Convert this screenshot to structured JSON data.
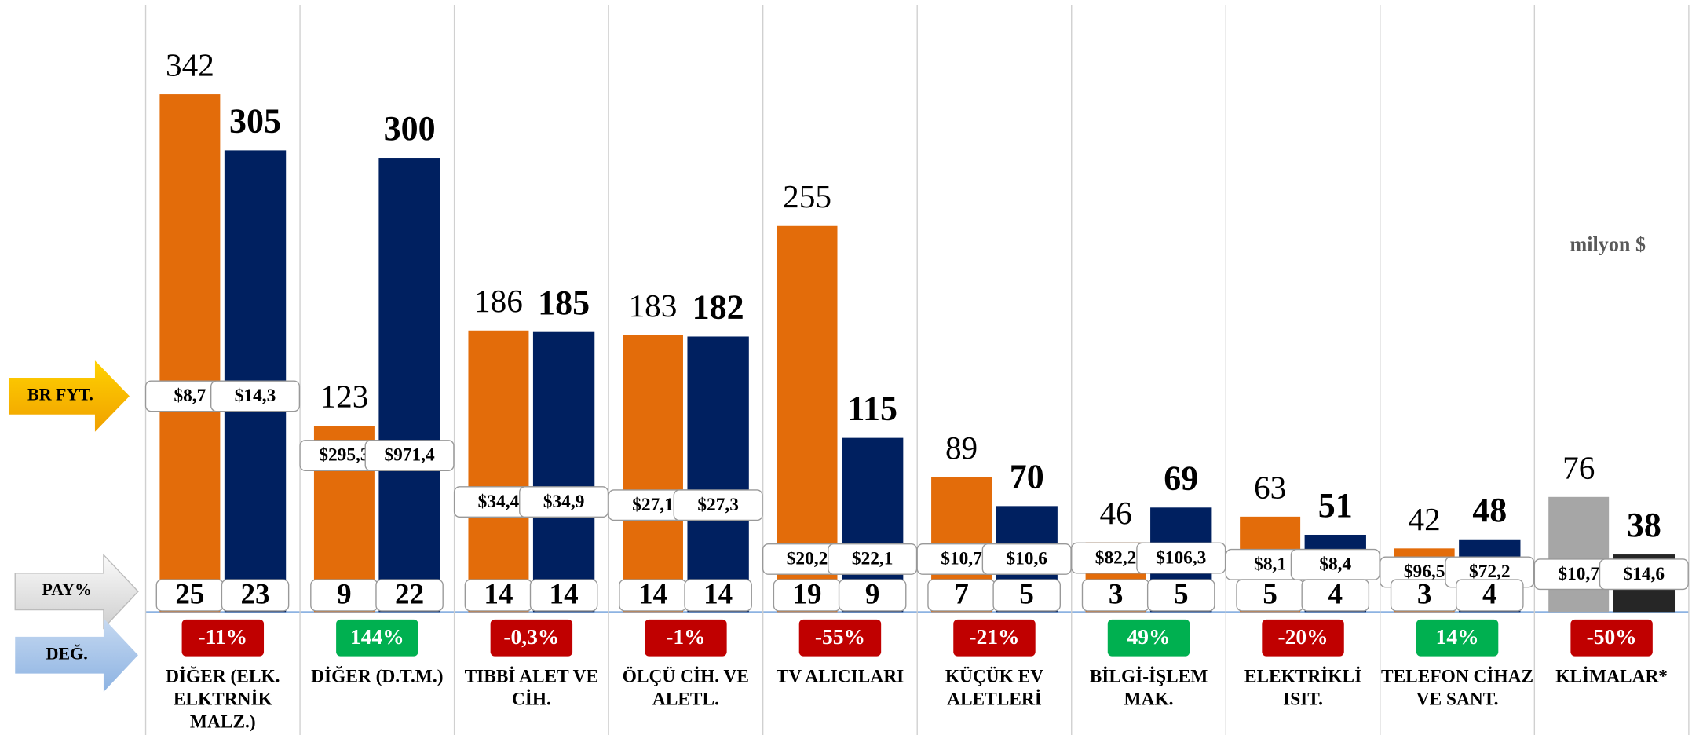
{
  "chart_data": {
    "type": "bar",
    "unit_label": "milyon $",
    "row_labels": {
      "price": "BR FYT.",
      "share": "PAY%",
      "change": "DEĞ."
    },
    "categories": [
      "DİĞER (ELK. ELKTRNİK MALZ.)",
      "DİĞER (D.T.M.)",
      "TIBBİ ALET VE CİH.",
      "ÖLÇÜ CİH. VE ALETL.",
      "TV ALICILARI",
      "KÜÇÜK EV ALETLERİ",
      "BİLGİ-İŞLEM MAK.",
      "ELEKTRİKLİ ISIT.",
      "TELEFON CİHAZ VE SANT.",
      "KLİMALAR*"
    ],
    "series": [
      {
        "color": "#e36c0a",
        "colors": [
          "#e36c0a",
          "#e36c0a",
          "#e36c0a",
          "#e36c0a",
          "#e36c0a",
          "#e36c0a",
          "#e36c0a",
          "#e36c0a",
          "#e36c0a",
          "#a6a6a6"
        ],
        "values": [
          342,
          123,
          186,
          183,
          255,
          89,
          46,
          63,
          42,
          76
        ],
        "prices": [
          {
            "value": 8.7,
            "label": "$8,7"
          },
          {
            "value": 295.3,
            "label": "$295,3"
          },
          {
            "value": 34.4,
            "label": "$34,4"
          },
          {
            "value": 27.1,
            "label": "$27,1"
          },
          {
            "value": 20.2,
            "label": "$20,2"
          },
          {
            "value": 10.7,
            "label": "$10,7"
          },
          {
            "value": 82.2,
            "label": "$82,2"
          },
          {
            "value": 8.1,
            "label": "$8,1"
          },
          {
            "value": 96.5,
            "label": "$96,5"
          },
          {
            "value": 10.7,
            "label": "$10,7"
          }
        ],
        "shares": [
          25,
          9,
          14,
          14,
          19,
          7,
          3,
          5,
          3,
          null
        ]
      },
      {
        "color": "#002060",
        "colors": [
          "#002060",
          "#002060",
          "#002060",
          "#002060",
          "#002060",
          "#002060",
          "#002060",
          "#002060",
          "#002060",
          "#262626"
        ],
        "values": [
          305,
          300,
          185,
          182,
          115,
          70,
          69,
          51,
          48,
          38
        ],
        "prices": [
          {
            "value": 14.3,
            "label": "$14,3"
          },
          {
            "value": 971.4,
            "label": "$971,4"
          },
          {
            "value": 34.9,
            "label": "$34,9"
          },
          {
            "value": 27.3,
            "label": "$27,3"
          },
          {
            "value": 22.1,
            "label": "$22,1"
          },
          {
            "value": 10.6,
            "label": "$10,6"
          },
          {
            "value": 106.3,
            "label": "$106,3"
          },
          {
            "value": 8.4,
            "label": "$8,4"
          },
          {
            "value": 72.2,
            "label": "$72,2"
          },
          {
            "value": 14.6,
            "label": "$14,6"
          }
        ],
        "shares": [
          23,
          22,
          14,
          14,
          9,
          5,
          5,
          4,
          4,
          null
        ]
      }
    ],
    "changes": [
      {
        "value": -11,
        "label": "-11%"
      },
      {
        "value": 144,
        "label": "144%"
      },
      {
        "value": -0.3,
        "label": "-0,3%"
      },
      {
        "value": -1,
        "label": "-1%"
      },
      {
        "value": -55,
        "label": "-55%"
      },
      {
        "value": -21,
        "label": "-21%"
      },
      {
        "value": 49,
        "label": "49%"
      },
      {
        "value": -20,
        "label": "-20%"
      },
      {
        "value": 14,
        "label": "14%"
      },
      {
        "value": -50,
        "label": "-50%"
      }
    ],
    "up_color": "#00b050",
    "down_color": "#c00000",
    "ylim": [
      0,
      400
    ]
  }
}
